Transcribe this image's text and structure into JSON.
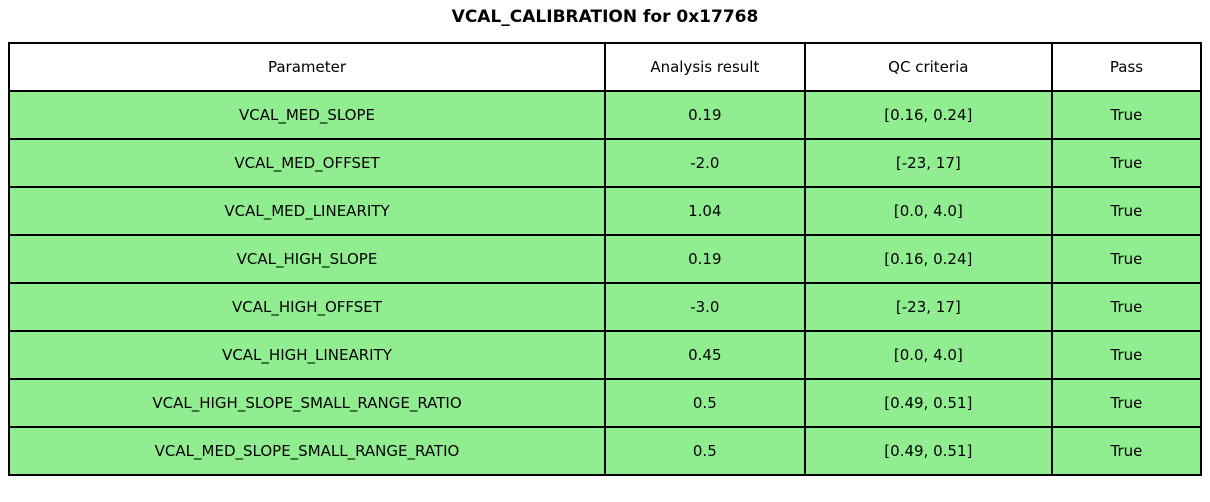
{
  "title": "VCAL_CALIBRATION for 0x17768",
  "colors": {
    "pass_row_bg": "#90ee90",
    "header_bg": "#ffffff",
    "border": "#000000",
    "text": "#000000"
  },
  "chart_data": {
    "type": "table",
    "title": "VCAL_CALIBRATION for 0x17768",
    "columns": [
      "Parameter",
      "Analysis result",
      "QC criteria",
      "Pass"
    ],
    "rows": [
      [
        "VCAL_MED_SLOPE",
        "0.19",
        "[0.16, 0.24]",
        "True"
      ],
      [
        "VCAL_MED_OFFSET",
        "-2.0",
        "[-23, 17]",
        "True"
      ],
      [
        "VCAL_MED_LINEARITY",
        "1.04",
        "[0.0, 4.0]",
        "True"
      ],
      [
        "VCAL_HIGH_SLOPE",
        "0.19",
        "[0.16, 0.24]",
        "True"
      ],
      [
        "VCAL_HIGH_OFFSET",
        "-3.0",
        "[-23, 17]",
        "True"
      ],
      [
        "VCAL_HIGH_LINEARITY",
        "0.45",
        "[0.0, 4.0]",
        "True"
      ],
      [
        "VCAL_HIGH_SLOPE_SMALL_RANGE_RATIO",
        "0.5",
        "[0.49, 0.51]",
        "True"
      ],
      [
        "VCAL_MED_SLOPE_SMALL_RANGE_RATIO",
        "0.5",
        "[0.49, 0.51]",
        "True"
      ]
    ],
    "layout": {
      "grid": true,
      "all_rows_pass": true,
      "header_position": "top"
    }
  }
}
